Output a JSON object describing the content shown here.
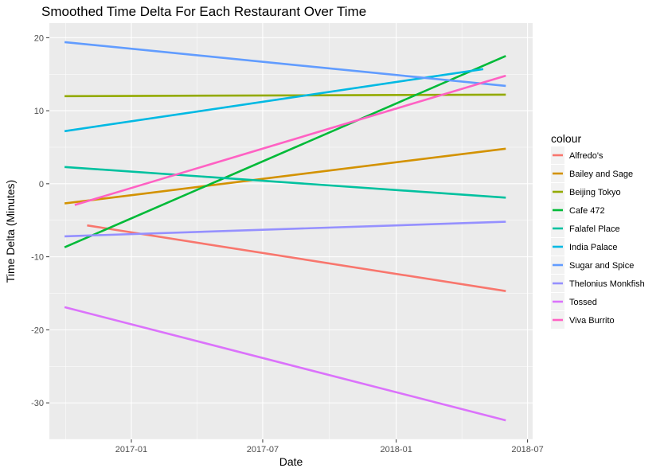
{
  "chart_data": {
    "type": "line",
    "title": "Smoothed Time Delta For Each Restaurant Over Time",
    "xlabel": "Date",
    "ylabel": "Time Delta (Minutes)",
    "xlim": [
      "2016-09-10",
      "2018-07-08"
    ],
    "ylim": [
      -35,
      22
    ],
    "x_ticks": [
      {
        "date": "2017-01-01",
        "label": "2017-01"
      },
      {
        "date": "2017-07-01",
        "label": "2017-07"
      },
      {
        "date": "2018-01-01",
        "label": "2018-01"
      },
      {
        "date": "2018-07-01",
        "label": "2018-07"
      }
    ],
    "y_ticks": [
      -30,
      -20,
      -10,
      0,
      10,
      20
    ],
    "grid": true,
    "legend": {
      "title": "colour",
      "position": "right"
    },
    "series": [
      {
        "name": "Alfredo's",
        "color": "#F8766D",
        "points": [
          [
            "2016-11-01",
            -5.7
          ],
          [
            "2018-06-01",
            -14.7
          ]
        ]
      },
      {
        "name": "Bailey and Sage",
        "color": "#D39200",
        "points": [
          [
            "2016-10-01",
            -2.7
          ],
          [
            "2018-06-01",
            4.8
          ]
        ]
      },
      {
        "name": "Beijing Tokyo",
        "color": "#93AA00",
        "points": [
          [
            "2016-10-01",
            12.0
          ],
          [
            "2018-06-01",
            12.2
          ]
        ]
      },
      {
        "name": "Cafe 472",
        "color": "#00BA38",
        "points": [
          [
            "2016-10-01",
            -8.7
          ],
          [
            "2018-06-01",
            17.5
          ]
        ]
      },
      {
        "name": "Falafel Place",
        "color": "#00C19F",
        "points": [
          [
            "2016-10-01",
            2.3
          ],
          [
            "2018-06-01",
            -1.9
          ]
        ]
      },
      {
        "name": "India Palace",
        "color": "#00B9E3",
        "points": [
          [
            "2016-10-01",
            7.2
          ],
          [
            "2018-05-01",
            15.7
          ]
        ]
      },
      {
        "name": "Sugar and Spice",
        "color": "#619CFF",
        "points": [
          [
            "2016-10-01",
            19.4
          ],
          [
            "2018-06-01",
            13.4
          ]
        ]
      },
      {
        "name": "Thelonius Monkfish",
        "color": "#9590FF",
        "points": [
          [
            "2016-10-01",
            -7.2
          ],
          [
            "2018-06-01",
            -5.2
          ]
        ]
      },
      {
        "name": "Tossed",
        "color": "#DB72FB",
        "points": [
          [
            "2016-10-01",
            -16.9
          ],
          [
            "2018-06-01",
            -32.4
          ]
        ]
      },
      {
        "name": "Viva Burrito",
        "color": "#FF61C3",
        "points": [
          [
            "2016-10-15",
            -2.9
          ],
          [
            "2018-06-01",
            14.8
          ]
        ]
      }
    ]
  }
}
